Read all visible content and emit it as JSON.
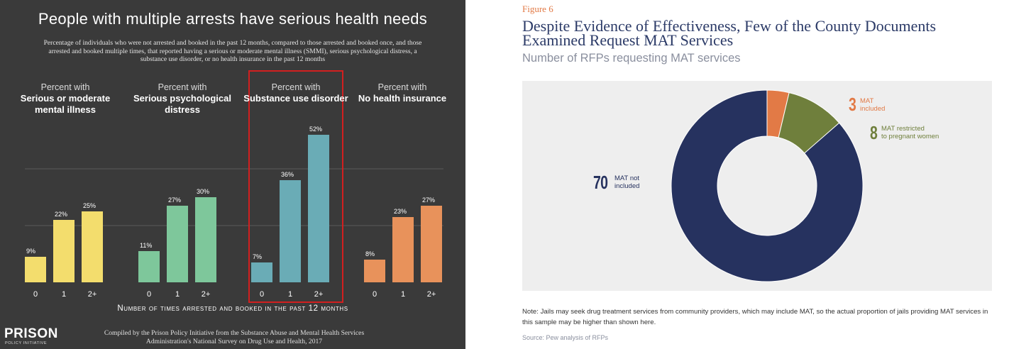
{
  "left": {
    "title": "People with multiple arrests have serious health needs",
    "subtitle": "Percentage of individuals who were not arrested and booked in the past 12 months, compared to those arrested and booked once, and those arrested and booked multiple times, that reported having a serious or moderate mental illness (SMMI), serious psychological distress, a substance use disorder, or no health insurance in the past 12 months",
    "groups": [
      {
        "pre": "Percent with",
        "bold": "Serious or moderate mental illness"
      },
      {
        "pre": "Percent with",
        "bold": "Serious psychological distress"
      },
      {
        "pre": "Percent with",
        "bold": "Substance use disorder"
      },
      {
        "pre": "Percent with",
        "bold": "No health insurance"
      }
    ],
    "xaxis_title": "Number of times arrested and booked in the past 12 months",
    "logo_main": "PRISON",
    "logo_sub": "POLICY INITIATIVE",
    "source": "Compiled by the Prison Policy Initiative from the Substance Abuse and Mental Health Services Administration's National Survey on Drug Use and Health, 2017"
  },
  "right": {
    "figure_label": "Figure 6",
    "title": "Despite Evidence of Effectiveness, Few of the County Documents Examined Request MAT Services",
    "subtitle": "Number of RFPs requesting MAT services",
    "labels": [
      {
        "num": "3",
        "text_line1": "MAT",
        "text_line2": "included"
      },
      {
        "num": "8",
        "text_line1": "MAT restricted",
        "text_line2": "to pregnant women"
      },
      {
        "num": "70",
        "text_line1": "MAT not",
        "text_line2": "included"
      }
    ],
    "note": "Note: Jails may seek drug treatment services from community providers, which may include MAT, so the actual proportion of jails providing MAT services in this sample may be higher than shown here.",
    "source": "Source: Pew analysis of RFPs"
  },
  "chart_data": [
    {
      "type": "bar",
      "title": "People with multiple arrests have serious health needs",
      "xlabel": "Number of times arrested and booked in the past 12 months",
      "ylabel": "",
      "ylim": [
        0,
        60
      ],
      "grid": true,
      "categories": [
        "0",
        "1",
        "2+"
      ],
      "series": [
        {
          "name": "Serious or moderate mental illness",
          "values": [
            9,
            22,
            25
          ],
          "color": "#f3dd6d"
        },
        {
          "name": "Serious psychological distress",
          "values": [
            11,
            27,
            30
          ],
          "color": "#7ec79b"
        },
        {
          "name": "Substance use disorder",
          "values": [
            7,
            36,
            52
          ],
          "color": "#6aacb6",
          "highlighted": true
        },
        {
          "name": "No health insurance",
          "values": [
            8,
            23,
            27
          ],
          "color": "#e8925b"
        }
      ],
      "value_suffix": "%",
      "highlight_color": "#d21f1f"
    },
    {
      "type": "pie",
      "variant": "donut",
      "title": "Despite Evidence of Effectiveness, Few of the County Documents Examined Request MAT Services",
      "subtitle": "Number of RFPs requesting MAT services",
      "slices": [
        {
          "label": "MAT included",
          "value": 3,
          "color": "#e27a46"
        },
        {
          "label": "MAT restricted to pregnant women",
          "value": 8,
          "color": "#6f7f3c"
        },
        {
          "label": "MAT not included",
          "value": 70,
          "color": "#26325f"
        }
      ]
    }
  ]
}
